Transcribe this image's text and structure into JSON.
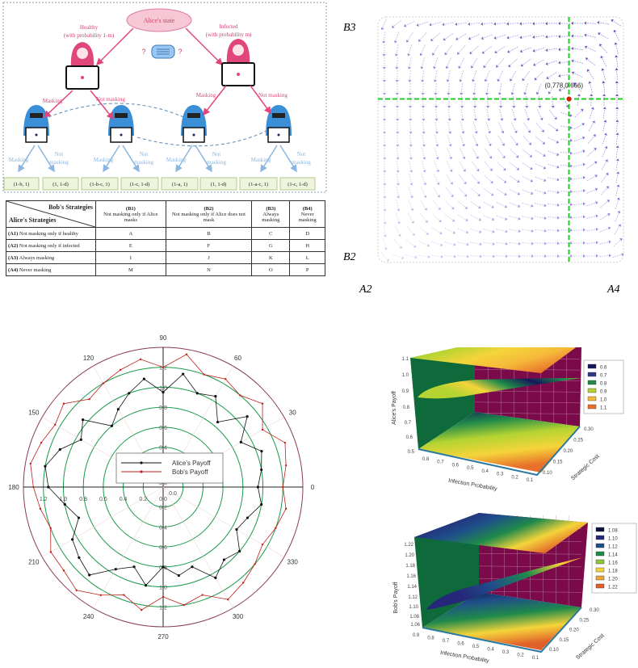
{
  "tree": {
    "root": "Alice's state",
    "healthy_label": "Healthy",
    "healthy_prob": "(with probability 1-m)",
    "infected_label": "Infected",
    "infected_prob": "(with probability m)",
    "question": "?",
    "alice_branches": [
      "Masking",
      "Not masking",
      "Masking",
      "Not masking"
    ],
    "bob_branches": [
      [
        "Masking",
        "Not",
        "masking"
      ],
      [
        "Masking",
        "Not",
        "masking"
      ],
      [
        "Masking",
        "Not",
        "masking"
      ],
      [
        "Masking",
        "Not",
        "masking"
      ]
    ],
    "payoffs": [
      "(1-b, 1)",
      "(1, 1-d)",
      "(1-b-c, 1)",
      "(1-c, 1-d)",
      "(1-a, 1)",
      "(1, 1-d)",
      "(1-a-c, 1)",
      "(1-c, 1-d)"
    ],
    "colors": {
      "alice": "#e0457b",
      "bob": "#3a8fd6",
      "branch_bob": "#8ab6e0",
      "payoff_bg": "#eef5dc"
    }
  },
  "table": {
    "corner_top": "Bob's Strategies",
    "corner_bottom": "Alice's Strategies",
    "columns": [
      {
        "id": "(B1)",
        "label": "Not masking only if Alice masks"
      },
      {
        "id": "(B2)",
        "label": "Not masking only if Alice does not mask"
      },
      {
        "id": "(B3)",
        "label": "Always masking"
      },
      {
        "id": "(B4)",
        "label": "Never masking"
      }
    ],
    "rows": [
      {
        "id": "(A1)",
        "label": "Not masking only if healthy",
        "cells": [
          "A",
          "B",
          "C",
          "D"
        ]
      },
      {
        "id": "(A2)",
        "label": "Not masking only if infected",
        "cells": [
          "E",
          "F",
          "G",
          "H"
        ]
      },
      {
        "id": "(A3)",
        "label": "Always masking",
        "cells": [
          "I",
          "J",
          "K",
          "L"
        ]
      },
      {
        "id": "(A4)",
        "label": "Never masking",
        "cells": [
          "M",
          "N",
          "O",
          "P"
        ]
      }
    ]
  },
  "phase": {
    "y_top": "B3",
    "y_bottom": "B2",
    "x_left": "A2",
    "x_right": "A4",
    "equilibrium": [
      0.778,
      0.666
    ],
    "equilibrium_label": "(0.778,0.666)",
    "arrow_color": "#6a55c8",
    "crosshair_color": "#22cc22",
    "point_color": "#cc2200"
  },
  "chart_data": [
    {
      "type": "polar-line",
      "angle_ticks": [
        "0",
        "30",
        "60",
        "90",
        "120",
        "150",
        "180",
        "210",
        "240",
        "270",
        "300",
        "330"
      ],
      "radial_ticks": [
        "0.0",
        "0.2",
        "0.4",
        "0.6",
        "0.8",
        "1.0",
        "1.2"
      ],
      "rlim": [
        0,
        1.4
      ],
      "legend": "center",
      "series": [
        {
          "name": "Alice's Payoff",
          "color": "#111111",
          "angles": [
            0,
            10,
            20,
            30,
            40,
            50,
            60,
            70,
            80,
            90,
            100,
            110,
            120,
            130,
            140,
            150,
            160,
            170,
            180,
            190,
            200,
            210,
            220,
            230,
            240,
            250,
            260,
            270,
            280,
            290,
            300,
            310,
            320,
            330,
            340,
            350
          ],
          "values": [
            0.95,
            1.0,
            1.05,
            0.9,
            1.1,
            0.85,
            1.05,
            1.0,
            1.15,
            0.95,
            1.1,
            1.0,
            0.9,
            0.8,
            1.05,
            0.95,
            1.1,
            1.2,
            1.15,
            1.0,
            0.9,
            1.05,
            1.1,
            1.15,
            0.95,
            0.85,
            1.0,
            0.8,
            0.9,
            0.85,
            1.05,
            0.95,
            1.0,
            0.85,
            0.9,
            1.0
          ]
        },
        {
          "name": "Bob's Payoff",
          "color": "#c0201a",
          "angles": [
            0,
            10,
            20,
            30,
            40,
            50,
            60,
            70,
            80,
            90,
            100,
            110,
            120,
            130,
            140,
            150,
            160,
            170,
            180,
            190,
            200,
            210,
            220,
            230,
            240,
            250,
            260,
            270,
            280,
            290,
            300,
            310,
            320,
            330,
            340,
            350
          ],
          "values": [
            1.2,
            1.25,
            1.3,
            1.15,
            1.3,
            1.2,
            1.25,
            1.2,
            1.35,
            1.2,
            1.3,
            1.25,
            1.2,
            1.15,
            1.3,
            1.25,
            1.3,
            1.35,
            1.3,
            1.25,
            1.2,
            1.3,
            1.3,
            1.35,
            1.25,
            1.15,
            1.25,
            1.1,
            1.2,
            1.15,
            1.3,
            1.25,
            1.2,
            1.15,
            1.2,
            1.25
          ]
        }
      ]
    },
    {
      "type": "surface3d",
      "zlabel": "Alice's Payoff",
      "xlabel": "Infection Probability",
      "ylabel": "Strategic Cost",
      "z_ticks": [
        "1.1",
        "1.0",
        "0.9",
        "0.8",
        "0.7",
        "0.6",
        "0.5"
      ],
      "x_ticks": [
        "0.8",
        "0.7",
        "0.6",
        "0.5",
        "0.4",
        "0.3",
        "0.2",
        "0.1"
      ],
      "y_ticks": [
        "0.10",
        "0.15",
        "0.20",
        "0.25",
        "0.30"
      ],
      "legend": [
        "0.6",
        "0.7",
        "0.8",
        "0.9",
        "1.0",
        "1.1"
      ],
      "legend_colors": [
        "#14185a",
        "#2b3a8a",
        "#1f8a4a",
        "#b5d432",
        "#f5b83a",
        "#e8702a"
      ]
    },
    {
      "type": "surface3d",
      "zlabel": "Bob's Payoff",
      "xlabel": "Infection Probability",
      "ylabel": "Strategic Cost",
      "z_ticks": [
        "1.22",
        "1.20",
        "1.18",
        "1.16",
        "1.14",
        "1.12",
        "1.10",
        "1.08",
        "1.06"
      ],
      "x_ticks": [
        "0.9",
        "0.8",
        "0.7",
        "0.6",
        "0.5",
        "0.4",
        "0.3",
        "0.2",
        "0.1"
      ],
      "y_ticks": [
        "0.10",
        "0.15",
        "0.20",
        "0.25",
        "0.30"
      ],
      "legend": [
        "1.08",
        "1.10",
        "1.12",
        "1.14",
        "1.16",
        "1.18",
        "1.20",
        "1.22"
      ],
      "legend_colors": [
        "#0e1040",
        "#25287a",
        "#1f4f8a",
        "#1f8a4a",
        "#8cc63a",
        "#f5d43a",
        "#eda23a",
        "#e0602a"
      ]
    }
  ]
}
